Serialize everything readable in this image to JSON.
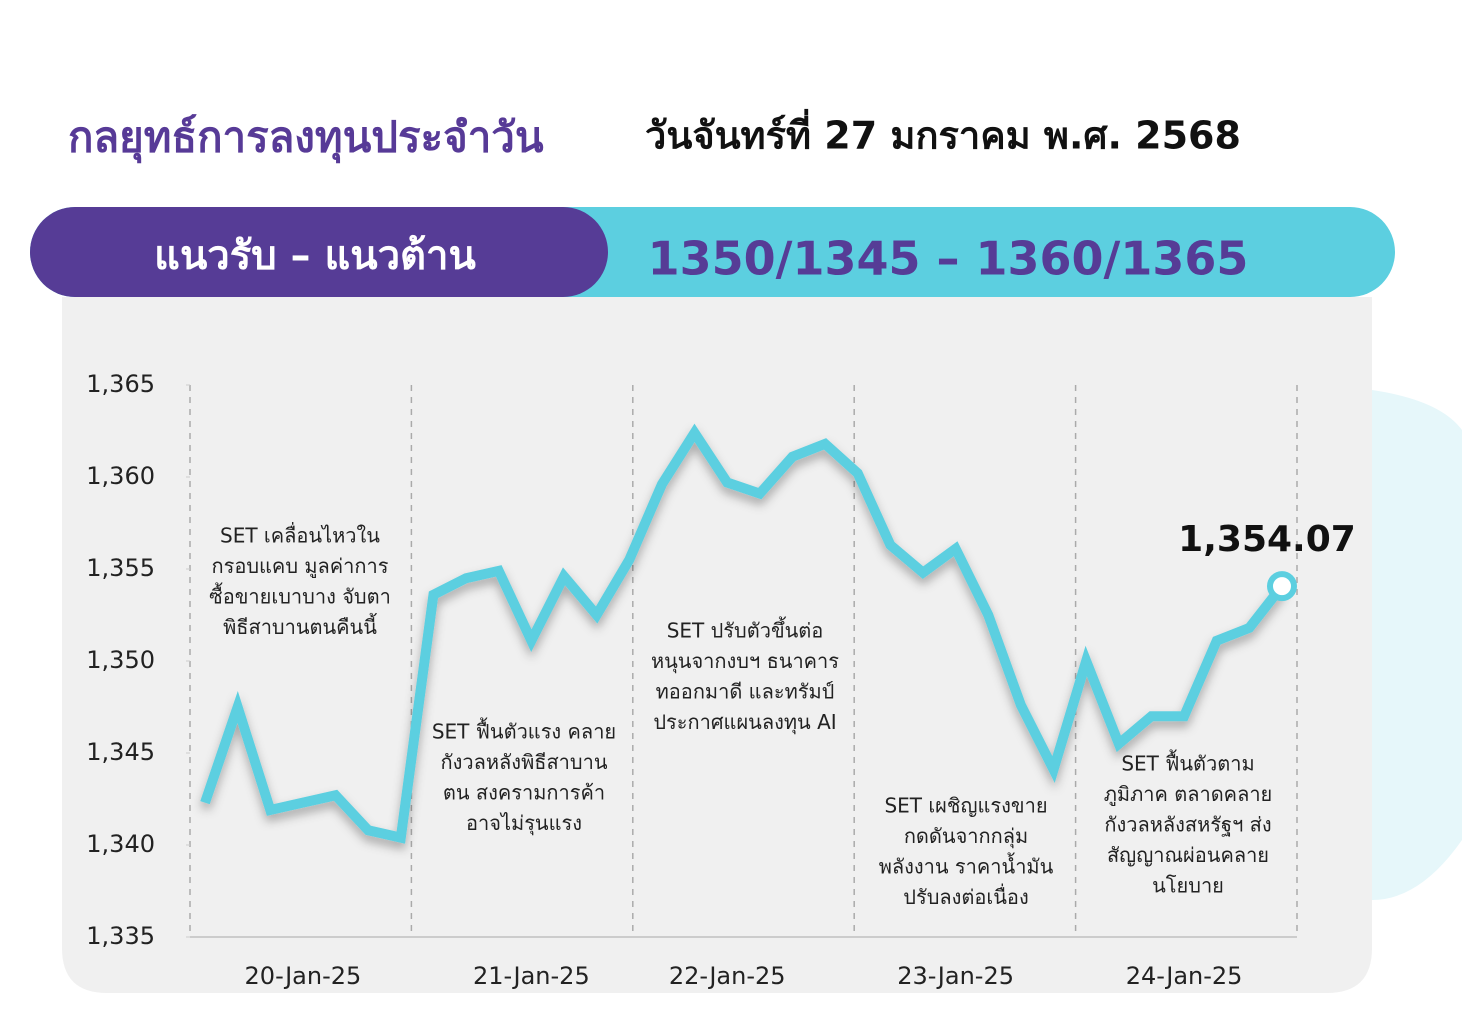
{
  "header": {
    "title": "กลยุทธ์การลงทุนประจำวัน",
    "date": "วันจันทร์ที่ 27 มกราคม พ.ศ. 2568",
    "band_label": "แนวรับ – แนวต้าน",
    "band_value": "1350/1345 – 1360/1365"
  },
  "chart_data": {
    "type": "line",
    "categories": [
      null,
      null,
      null,
      "20-Jan-25",
      null,
      null,
      null,
      null,
      null,
      null,
      "21-Jan-25",
      null,
      null,
      null,
      null,
      null,
      "22-Jan-25",
      null,
      null,
      null,
      null,
      null,
      null,
      "23-Jan-25",
      null,
      null,
      null,
      null,
      null,
      null,
      "24-Jan-25",
      null,
      null,
      null
    ],
    "series": [
      {
        "color": "#5ccfe0",
        "values": [
          1342.3,
          1347.5,
          1341.9,
          1342.3,
          1342.7,
          1340.8,
          1340.4,
          1353.6,
          1354.5,
          1354.9,
          1351.1,
          1354.6,
          1352.5,
          1355.5,
          1359.6,
          1362.4,
          1359.7,
          1359.1,
          1361.1,
          1361.8,
          1360.2,
          1356.3,
          1354.8,
          1356.1,
          1352.5,
          1347.6,
          1344.1,
          1350.0,
          1345.5,
          1347.0,
          1347.0,
          1351.1,
          1351.8,
          1354.07
        ],
        "value_labels": [
          null,
          null,
          null,
          null,
          null,
          null,
          null,
          null,
          null,
          null,
          null,
          null,
          null,
          null,
          null,
          null,
          null,
          null,
          null,
          null,
          null,
          null,
          null,
          null,
          null,
          null,
          null,
          null,
          null,
          null,
          null,
          null,
          null,
          "1,354.07"
        ]
      }
    ],
    "ylim": [
      1335,
      1365
    ],
    "yticks": [
      {
        "value": 1335,
        "label": "1,335"
      },
      {
        "value": 1340,
        "label": "1,340"
      },
      {
        "value": 1345,
        "label": "1,345"
      },
      {
        "value": 1350,
        "label": "1,350"
      },
      {
        "value": 1355,
        "label": "1,355"
      },
      {
        "value": 1360,
        "label": "1,360"
      },
      {
        "value": 1365,
        "label": "1,365"
      }
    ],
    "annotations": [
      {
        "lines": [
          "SET เคลื่อนไหวใน",
          "กรอบแคบ มูลค่าการ",
          "ซื้อขายเบาบาง จับตา",
          "พิธีสาบานตนคืนนี้"
        ]
      },
      {
        "lines": [
          "SET ฟื้นตัวแรง คลาย",
          "กังวลหลังพิธีสาบาน",
          "ตน สงครามการค้า",
          "อาจไม่รุนแรง"
        ]
      },
      {
        "lines": [
          "SET ปรับตัวขึ้นต่อ",
          "หนุนจากงบฯ ธนาคาร",
          "ทออกมาดี และทรัมป์",
          "ประกาศแผนลงทุน AI"
        ]
      },
      {
        "lines": [
          "SET เผชิญแรงขาย",
          "กดดันจากกลุ่ม",
          "พลังงาน ราคาน้ำมัน",
          "ปรับลงต่อเนื่อง"
        ]
      },
      {
        "lines": [
          "SET ฟื้นตัวตาม",
          "ภูมิภาค ตลาดคลาย",
          "กังวลหลังสหรัฐฯ ส่ง",
          "สัญญาณผ่อนคลาย",
          "นโยบาย"
        ]
      }
    ]
  }
}
